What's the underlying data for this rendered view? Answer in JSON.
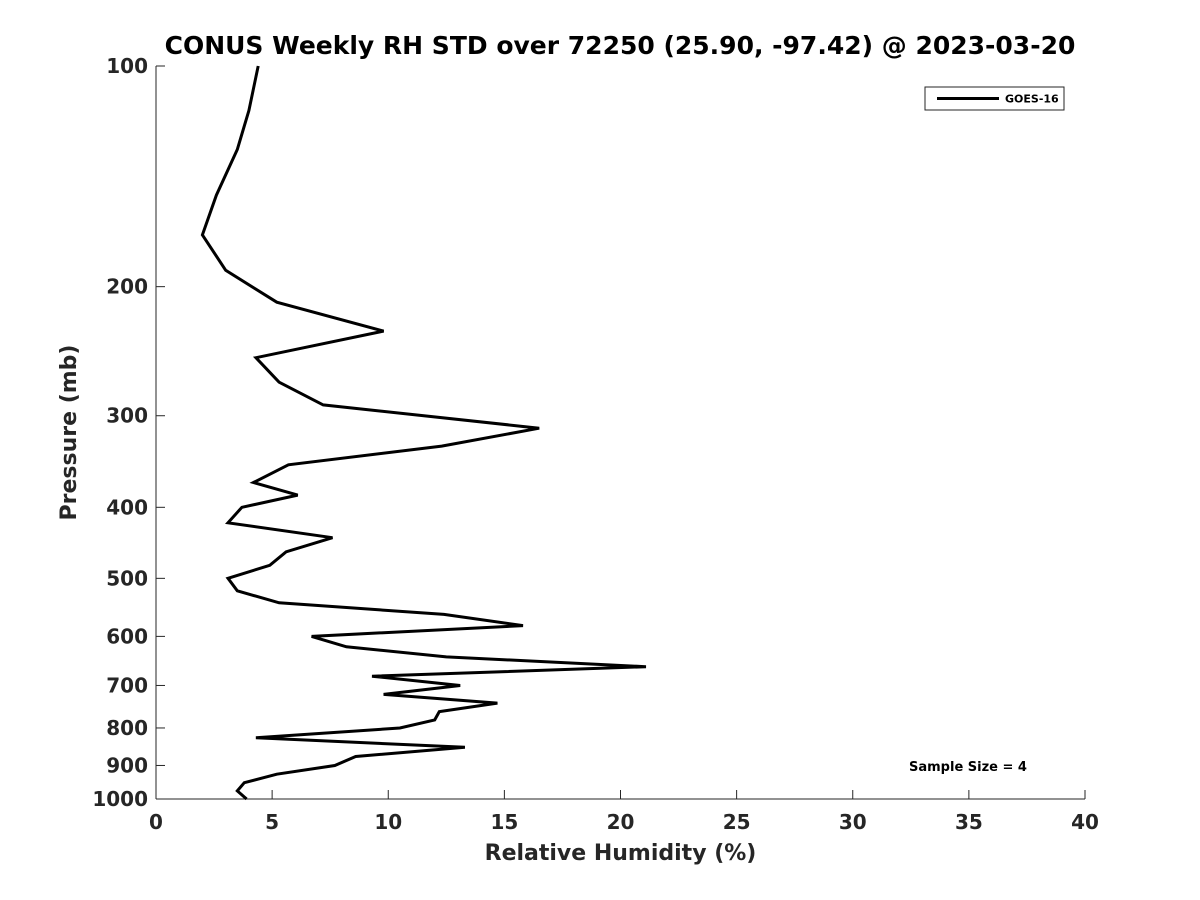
{
  "chart_data": {
    "type": "line",
    "title": "CONUS Weekly RH STD over 72250 (25.90, -97.42) @ 2023-03-20",
    "xlabel": "Relative Humidity (%)",
    "ylabel": "Pressure (mb)",
    "xlim": [
      0,
      40
    ],
    "ylim": [
      100,
      1000
    ],
    "y_scale": "log",
    "y_reversed": true,
    "xticks": [
      0,
      5,
      10,
      15,
      20,
      25,
      30,
      35,
      40
    ],
    "yticks": [
      100,
      200,
      300,
      400,
      500,
      600,
      700,
      800,
      900,
      1000
    ],
    "grid": false,
    "legend_position": "top-right",
    "annotation": "Sample Size = 4",
    "series": [
      {
        "name": "GOES-16",
        "color": "#000000",
        "points": [
          [
            3.9,
            1000
          ],
          [
            3.5,
            975
          ],
          [
            3.8,
            950
          ],
          [
            5.2,
            925
          ],
          [
            7.7,
            900
          ],
          [
            8.6,
            875
          ],
          [
            13.3,
            850
          ],
          [
            4.3,
            825
          ],
          [
            10.5,
            800
          ],
          [
            12.0,
            780
          ],
          [
            12.2,
            760
          ],
          [
            14.7,
            740
          ],
          [
            9.8,
            720
          ],
          [
            13.1,
            700
          ],
          [
            9.3,
            680
          ],
          [
            21.1,
            660
          ],
          [
            12.5,
            640
          ],
          [
            8.2,
            620
          ],
          [
            6.7,
            600
          ],
          [
            15.8,
            580
          ],
          [
            12.4,
            560
          ],
          [
            5.3,
            540
          ],
          [
            3.5,
            520
          ],
          [
            3.1,
            500
          ],
          [
            4.9,
            480
          ],
          [
            5.6,
            460
          ],
          [
            7.6,
            440
          ],
          [
            3.1,
            420
          ],
          [
            3.7,
            400
          ],
          [
            6.1,
            385
          ],
          [
            4.2,
            370
          ],
          [
            5.7,
            350
          ],
          [
            12.3,
            330
          ],
          [
            16.5,
            312
          ],
          [
            7.2,
            290
          ],
          [
            5.3,
            270
          ],
          [
            4.3,
            250
          ],
          [
            9.8,
            230
          ],
          [
            5.2,
            210
          ],
          [
            3.0,
            190
          ],
          [
            2.0,
            170
          ],
          [
            2.6,
            150
          ],
          [
            3.5,
            130
          ],
          [
            4.0,
            115
          ],
          [
            4.4,
            100
          ]
        ]
      }
    ]
  }
}
